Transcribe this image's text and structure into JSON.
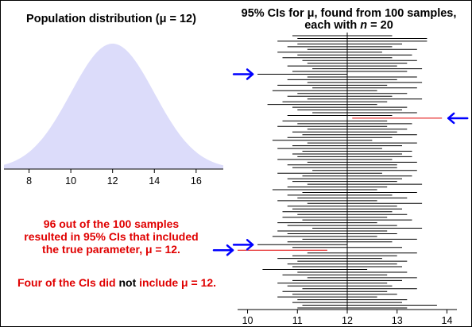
{
  "chart_data": [
    {
      "type": "area",
      "title": "Population distribution (μ = 12)",
      "x_ticks": [
        8,
        10,
        12,
        14,
        16
      ],
      "xlim": [
        6.8,
        17.3
      ],
      "mean": 12,
      "fill_color": "#dcdcfa",
      "grid": false
    },
    {
      "type": "interval",
      "title_line1": "95% CIs for μ, found from 100 samples,",
      "title_line2_prefix": "each with ",
      "title_line2_var": "n",
      "title_line2_suffix": " = 20",
      "x_ticks": [
        10,
        11,
        12,
        13,
        14
      ],
      "xlim": [
        9.8,
        14.2
      ],
      "true_parameter": 12,
      "include_color": "#000000",
      "exclude_color": "#e00000",
      "arrow_color": "#0000ff",
      "intervals": [
        [
          10.9,
          12.9
        ],
        [
          11.0,
          13.6
        ],
        [
          10.6,
          13.6
        ],
        [
          11.0,
          13.1
        ],
        [
          10.8,
          12.9
        ],
        [
          11.2,
          13.4
        ],
        [
          10.6,
          12.7
        ],
        [
          11.0,
          13.3
        ],
        [
          10.7,
          12.9
        ],
        [
          11.1,
          13.4
        ],
        [
          11.2,
          13.2
        ],
        [
          10.8,
          13.0
        ],
        [
          11.3,
          13.5
        ],
        [
          10.9,
          13.2
        ],
        [
          10.2,
          12.0
        ],
        [
          11.2,
          13.4
        ],
        [
          10.8,
          13.0
        ],
        [
          11.2,
          13.5
        ],
        [
          10.6,
          12.8
        ],
        [
          11.3,
          13.4
        ],
        [
          10.5,
          12.6
        ],
        [
          11.0,
          13.2
        ],
        [
          10.8,
          12.9
        ],
        [
          11.2,
          13.5
        ],
        [
          10.7,
          12.8
        ],
        [
          10.4,
          12.6
        ],
        [
          10.9,
          13.2
        ],
        [
          11.0,
          13.1
        ],
        [
          11.3,
          13.4
        ],
        [
          10.8,
          12.9
        ],
        [
          12.1,
          13.9
        ],
        [
          10.7,
          12.8
        ],
        [
          11.0,
          13.3
        ],
        [
          10.6,
          12.8
        ],
        [
          11.2,
          13.2
        ],
        [
          10.9,
          13.0
        ],
        [
          11.1,
          13.4
        ],
        [
          10.8,
          12.9
        ],
        [
          10.5,
          12.5
        ],
        [
          11.2,
          13.4
        ],
        [
          10.9,
          13.1
        ],
        [
          10.6,
          12.7
        ],
        [
          11.1,
          13.3
        ],
        [
          10.9,
          13.1
        ],
        [
          11.0,
          13.3
        ],
        [
          10.6,
          12.9
        ],
        [
          11.2,
          13.4
        ],
        [
          10.8,
          13.0
        ],
        [
          10.9,
          13.0
        ],
        [
          11.3,
          13.4
        ],
        [
          10.6,
          12.7
        ],
        [
          11.1,
          13.3
        ],
        [
          10.8,
          13.1
        ],
        [
          10.9,
          13.0
        ],
        [
          11.2,
          13.5
        ],
        [
          10.8,
          12.8
        ],
        [
          10.5,
          12.6
        ],
        [
          11.1,
          13.4
        ],
        [
          10.8,
          12.9
        ],
        [
          11.0,
          13.2
        ],
        [
          10.6,
          12.6
        ],
        [
          11.2,
          13.5
        ],
        [
          10.8,
          13.0
        ],
        [
          10.9,
          13.1
        ],
        [
          10.7,
          12.9
        ],
        [
          11.0,
          13.2
        ],
        [
          10.7,
          12.8
        ],
        [
          11.1,
          13.3
        ],
        [
          10.6,
          12.6
        ],
        [
          10.8,
          13.0
        ],
        [
          11.3,
          13.5
        ],
        [
          10.6,
          12.8
        ],
        [
          10.8,
          13.0
        ],
        [
          10.5,
          12.6
        ],
        [
          11.1,
          13.4
        ],
        [
          10.8,
          12.9
        ],
        [
          10.2,
          12.0
        ],
        [
          10.9,
          13.1
        ],
        [
          9.8,
          11.6
        ],
        [
          11.2,
          13.4
        ],
        [
          10.9,
          13.0
        ],
        [
          10.6,
          12.7
        ],
        [
          11.0,
          13.2
        ],
        [
          10.8,
          13.0
        ],
        [
          10.9,
          13.1
        ],
        [
          10.3,
          12.4
        ],
        [
          11.0,
          13.2
        ],
        [
          10.7,
          12.8
        ],
        [
          11.2,
          13.4
        ],
        [
          10.9,
          13.1
        ],
        [
          10.6,
          12.8
        ],
        [
          10.8,
          12.9
        ],
        [
          11.1,
          13.4
        ],
        [
          10.7,
          12.8
        ],
        [
          10.9,
          13.0
        ],
        [
          10.6,
          12.6
        ],
        [
          11.0,
          13.2
        ],
        [
          10.9,
          13.1
        ],
        [
          11.1,
          13.8
        ],
        [
          11.0,
          13.2
        ]
      ],
      "arrow_rows": [
        {
          "row": 14,
          "side": "left"
        },
        {
          "row": 30,
          "side": "right"
        },
        {
          "row": 76,
          "side": "left"
        },
        {
          "row": 78,
          "side": "left"
        }
      ]
    }
  ],
  "annotation": {
    "line1": "96 out of the 100 samples",
    "line2": "resulted in 95% CIs that included",
    "line3": "the true parameter, μ = 12.",
    "line4_a": "Four of the CIs did ",
    "line4_b": "not",
    "line4_c": " include μ = 12."
  }
}
